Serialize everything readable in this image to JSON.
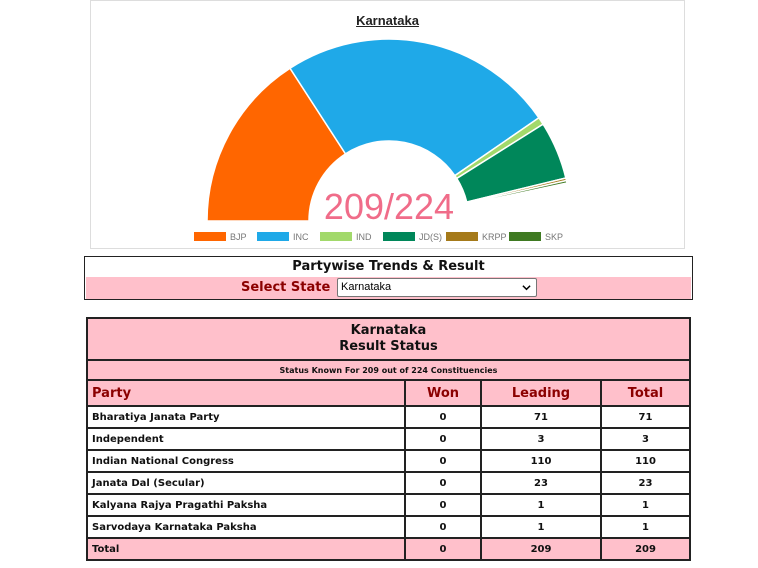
{
  "chart": {
    "title": "Karnataka",
    "center_label": "209/224",
    "center_color": "#f06c89",
    "total_seats": 224
  },
  "chart_data": {
    "type": "pie",
    "title": "Karnataka",
    "categories": [
      "BJP",
      "INC",
      "IND",
      "JD(S)",
      "KRPP",
      "SKP"
    ],
    "values": [
      71,
      110,
      3,
      23,
      1,
      1
    ],
    "colors": [
      "#ff6600",
      "#1fa9e8",
      "#a2d96b",
      "#00875a",
      "#a57a1a",
      "#3f7a22"
    ],
    "legend_placement": "bottom",
    "style": "semicircle-donut"
  },
  "selector": {
    "heading": "Partywise Trends & Result",
    "label": "Select State",
    "value": "Karnataka"
  },
  "table": {
    "title_line1": "Karnataka",
    "title_line2": "Result Status",
    "status": "Status Known For 209 out of 224 Constituencies",
    "columns": [
      "Party",
      "Won",
      "Leading",
      "Total"
    ],
    "rows": [
      {
        "party": "Bharatiya Janata Party",
        "won": "0",
        "leading": "71",
        "total": "71"
      },
      {
        "party": "Independent",
        "won": "0",
        "leading": "3",
        "total": "3"
      },
      {
        "party": "Indian National Congress",
        "won": "0",
        "leading": "110",
        "total": "110"
      },
      {
        "party": "Janata Dal (Secular)",
        "won": "0",
        "leading": "23",
        "total": "23"
      },
      {
        "party": "Kalyana Rajya Pragathi Paksha",
        "won": "0",
        "leading": "1",
        "total": "1"
      },
      {
        "party": "Sarvodaya Karnataka Paksha",
        "won": "0",
        "leading": "1",
        "total": "1"
      }
    ],
    "total_row": {
      "party": "Total",
      "won": "0",
      "leading": "209",
      "total": "209"
    }
  }
}
